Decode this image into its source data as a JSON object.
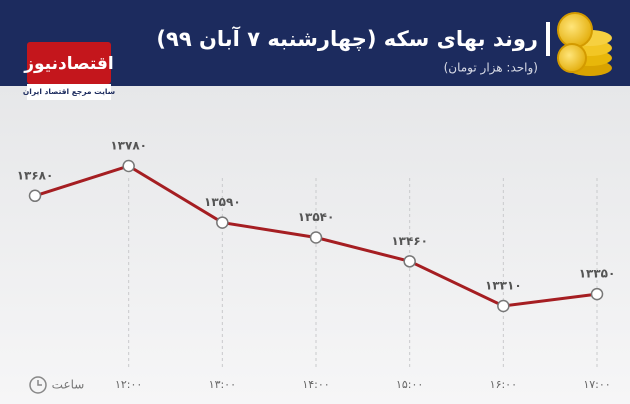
{
  "logo": {
    "name": "اقتصادنیوز",
    "tagline": "سایت مرجع اقتصاد ایران"
  },
  "chart_data": {
    "type": "line",
    "title": "روند بهای سکه (چهارشنبه ۷ آبان ۹۹)",
    "subtitle": "(واحد: هزار تومان)",
    "x_label": "ساعت",
    "categories": [
      null,
      "۱۲:۰۰",
      "۱۳:۰۰",
      "۱۴:۰۰",
      "۱۵:۰۰",
      "۱۶:۰۰",
      "۱۷:۰۰"
    ],
    "values": [
      13680,
      13780,
      13590,
      13540,
      13460,
      13310,
      13350
    ],
    "value_labels": [
      "۱۳۶۸۰",
      "۱۳۷۸۰",
      "۱۳۵۹۰",
      "۱۳۵۴۰",
      "۱۳۴۶۰",
      "۱۳۳۱۰",
      "۱۳۳۵۰"
    ],
    "color": "#a51e22",
    "grid": true
  }
}
